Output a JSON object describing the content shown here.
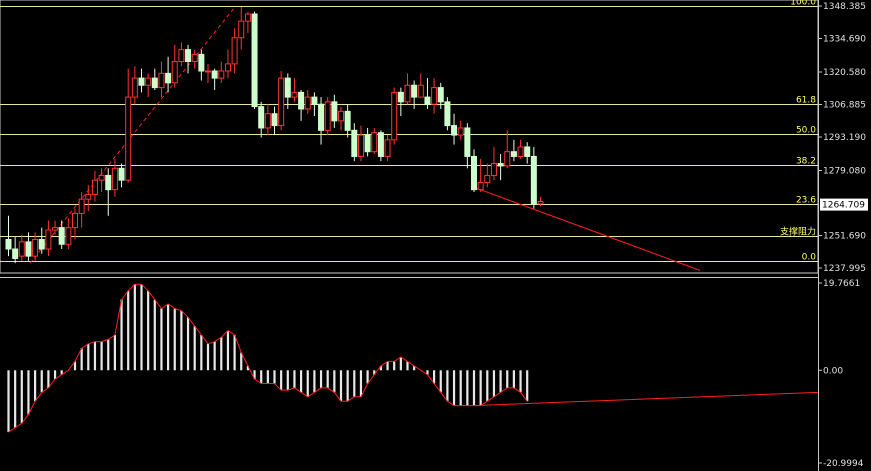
{
  "chart_data": [
    {
      "type": "candlestick",
      "price_axis": {
        "ticks": [
          "1348.385",
          "1334.690",
          "1320.580",
          "1306.885",
          "1293.190",
          "1279.080",
          "1251.690",
          "1237.995"
        ],
        "ylim": [
          1237.995,
          1348.385
        ]
      },
      "current_price": "1264.709",
      "fibonacci_levels": [
        {
          "label": "100.0",
          "price": 1348.4
        },
        {
          "label": "61.8",
          "price": 1306.9
        },
        {
          "label": "50.0",
          "price": 1294.5
        },
        {
          "label": "38.2",
          "price": 1281.5
        },
        {
          "label": "23.6",
          "price": 1265.0
        },
        {
          "label": "支撑阻力",
          "price": 1251.5
        },
        {
          "label": "0.0",
          "price": 1240.9
        }
      ],
      "trendlines": [
        {
          "style": "dashed",
          "color": "#ff2020",
          "from": [
            30,
            1240
          ],
          "to": [
            235,
            1348
          ]
        },
        {
          "style": "solid",
          "color": "#ff2020",
          "from": [
            474,
            1272
          ],
          "to": [
            700,
            1237
          ]
        }
      ],
      "candles": [
        [
          1250,
          1246,
          1260,
          1243
        ],
        [
          1246,
          1242,
          1251,
          1240
        ],
        [
          1243,
          1249,
          1252,
          1241
        ],
        [
          1249,
          1243,
          1253,
          1241
        ],
        [
          1243,
          1250,
          1253,
          1241
        ],
        [
          1250,
          1246,
          1255,
          1244
        ],
        [
          1246,
          1254,
          1258,
          1243
        ],
        [
          1254,
          1255,
          1258,
          1252
        ],
        [
          1255,
          1248,
          1258,
          1246
        ],
        [
          1248,
          1255,
          1259,
          1246
        ],
        [
          1255,
          1261,
          1263,
          1250
        ],
        [
          1261,
          1267,
          1270,
          1255
        ],
        [
          1267,
          1269,
          1273,
          1262
        ],
        [
          1269,
          1275,
          1279,
          1266
        ],
        [
          1275,
          1277,
          1280,
          1270
        ],
        [
          1277,
          1271,
          1280,
          1260
        ],
        [
          1271,
          1280,
          1284,
          1268
        ],
        [
          1280,
          1275,
          1282,
          1272
        ],
        [
          1275,
          1310,
          1322,
          1274
        ],
        [
          1310,
          1318,
          1323,
          1307
        ],
        [
          1318,
          1315,
          1322,
          1312
        ],
        [
          1315,
          1318,
          1320,
          1310
        ],
        [
          1318,
          1314,
          1322,
          1313
        ],
        [
          1314,
          1320,
          1325,
          1310
        ],
        [
          1320,
          1316,
          1327,
          1312
        ],
        [
          1316,
          1325,
          1332,
          1314
        ],
        [
          1325,
          1330,
          1333,
          1323
        ],
        [
          1330,
          1325,
          1332,
          1320
        ],
        [
          1325,
          1328,
          1330,
          1322
        ],
        [
          1328,
          1321,
          1330,
          1317
        ],
        [
          1321,
          1321,
          1324,
          1316
        ],
        [
          1321,
          1318,
          1322,
          1313
        ],
        [
          1318,
          1321,
          1325,
          1316
        ],
        [
          1321,
          1324,
          1330,
          1318
        ],
        [
          1324,
          1335,
          1339,
          1320
        ],
        [
          1335,
          1342,
          1348,
          1330
        ],
        [
          1342,
          1345,
          1346,
          1337
        ],
        [
          1345,
          1306,
          1346,
          1305
        ],
        [
          1306,
          1297,
          1308,
          1293
        ],
        [
          1297,
          1303,
          1307,
          1294
        ],
        [
          1303,
          1298,
          1306,
          1294
        ],
        [
          1298,
          1318,
          1321,
          1296
        ],
        [
          1318,
          1310,
          1320,
          1305
        ],
        [
          1310,
          1312,
          1318,
          1308
        ],
        [
          1312,
          1305,
          1313,
          1300
        ],
        [
          1305,
          1310,
          1313,
          1303
        ],
        [
          1310,
          1307,
          1312,
          1302
        ],
        [
          1307,
          1296,
          1310,
          1290
        ],
        [
          1296,
          1308,
          1310,
          1294
        ],
        [
          1308,
          1300,
          1311,
          1297
        ],
        [
          1300,
          1304,
          1306,
          1296
        ],
        [
          1304,
          1296,
          1307,
          1293
        ],
        [
          1296,
          1285,
          1299,
          1283
        ],
        [
          1285,
          1294,
          1298,
          1283
        ],
        [
          1294,
          1287,
          1297,
          1285
        ],
        [
          1287,
          1295,
          1297,
          1286
        ],
        [
          1295,
          1285,
          1296,
          1283
        ],
        [
          1285,
          1292,
          1294,
          1283
        ],
        [
          1292,
          1312,
          1314,
          1290
        ],
        [
          1312,
          1308,
          1314,
          1302
        ],
        [
          1308,
          1315,
          1320,
          1307
        ],
        [
          1315,
          1310,
          1317,
          1305
        ],
        [
          1310,
          1315,
          1320,
          1310
        ],
        [
          1310,
          1307,
          1318,
          1305
        ],
        [
          1307,
          1314,
          1318,
          1303
        ],
        [
          1314,
          1308,
          1316,
          1305
        ],
        [
          1308,
          1298,
          1310,
          1296
        ],
        [
          1298,
          1294,
          1303,
          1290
        ],
        [
          1294,
          1297,
          1300,
          1292
        ],
        [
          1297,
          1285,
          1299,
          1280
        ],
        [
          1285,
          1271,
          1288,
          1270
        ],
        [
          1271,
          1274,
          1284,
          1270
        ],
        [
          1274,
          1277,
          1282,
          1272
        ],
        [
          1277,
          1282,
          1289,
          1275
        ],
        [
          1282,
          1281,
          1286,
          1275
        ],
        [
          1281,
          1287,
          1296,
          1280
        ],
        [
          1287,
          1285,
          1292,
          1283
        ],
        [
          1285,
          1289,
          1292,
          1284
        ],
        [
          1289,
          1285,
          1291,
          1282
        ],
        [
          1285,
          1265,
          1289,
          1263
        ],
        [
          1265,
          1266,
          1268,
          1264
        ]
      ]
    },
    {
      "type": "bar",
      "indicator_axis": {
        "top_label": "19.7661",
        "zero_label": "0.00",
        "bottom_label": "-20.9994",
        "ylim": [
          -20.9994,
          19.7661
        ]
      },
      "values": [
        -14,
        -13,
        -12,
        -10,
        -7,
        -5,
        -4,
        -2,
        -1,
        0,
        2,
        5,
        6,
        6.5,
        6.5,
        7,
        8,
        16,
        18,
        19.5,
        19.5,
        18,
        16,
        14,
        15,
        14,
        13.5,
        12,
        10,
        8,
        6,
        6.5,
        7.5,
        9,
        8,
        4,
        1,
        -2,
        -3,
        -3,
        -3,
        -4.5,
        -4.5,
        -4,
        -5,
        -6,
        -5,
        -4,
        -4,
        -5,
        -7,
        -7,
        -6,
        -6,
        -3,
        -1,
        1,
        2,
        2,
        3,
        2,
        1,
        0,
        -1,
        -3,
        -5,
        -7,
        -8,
        -8,
        -8,
        -8,
        -8,
        -7,
        -6,
        -5,
        -4,
        -4,
        -5,
        -7
      ],
      "trendline": {
        "color": "#ff2020",
        "from": [
          474,
          -8
        ],
        "to": [
          818,
          -5
        ]
      }
    }
  ]
}
